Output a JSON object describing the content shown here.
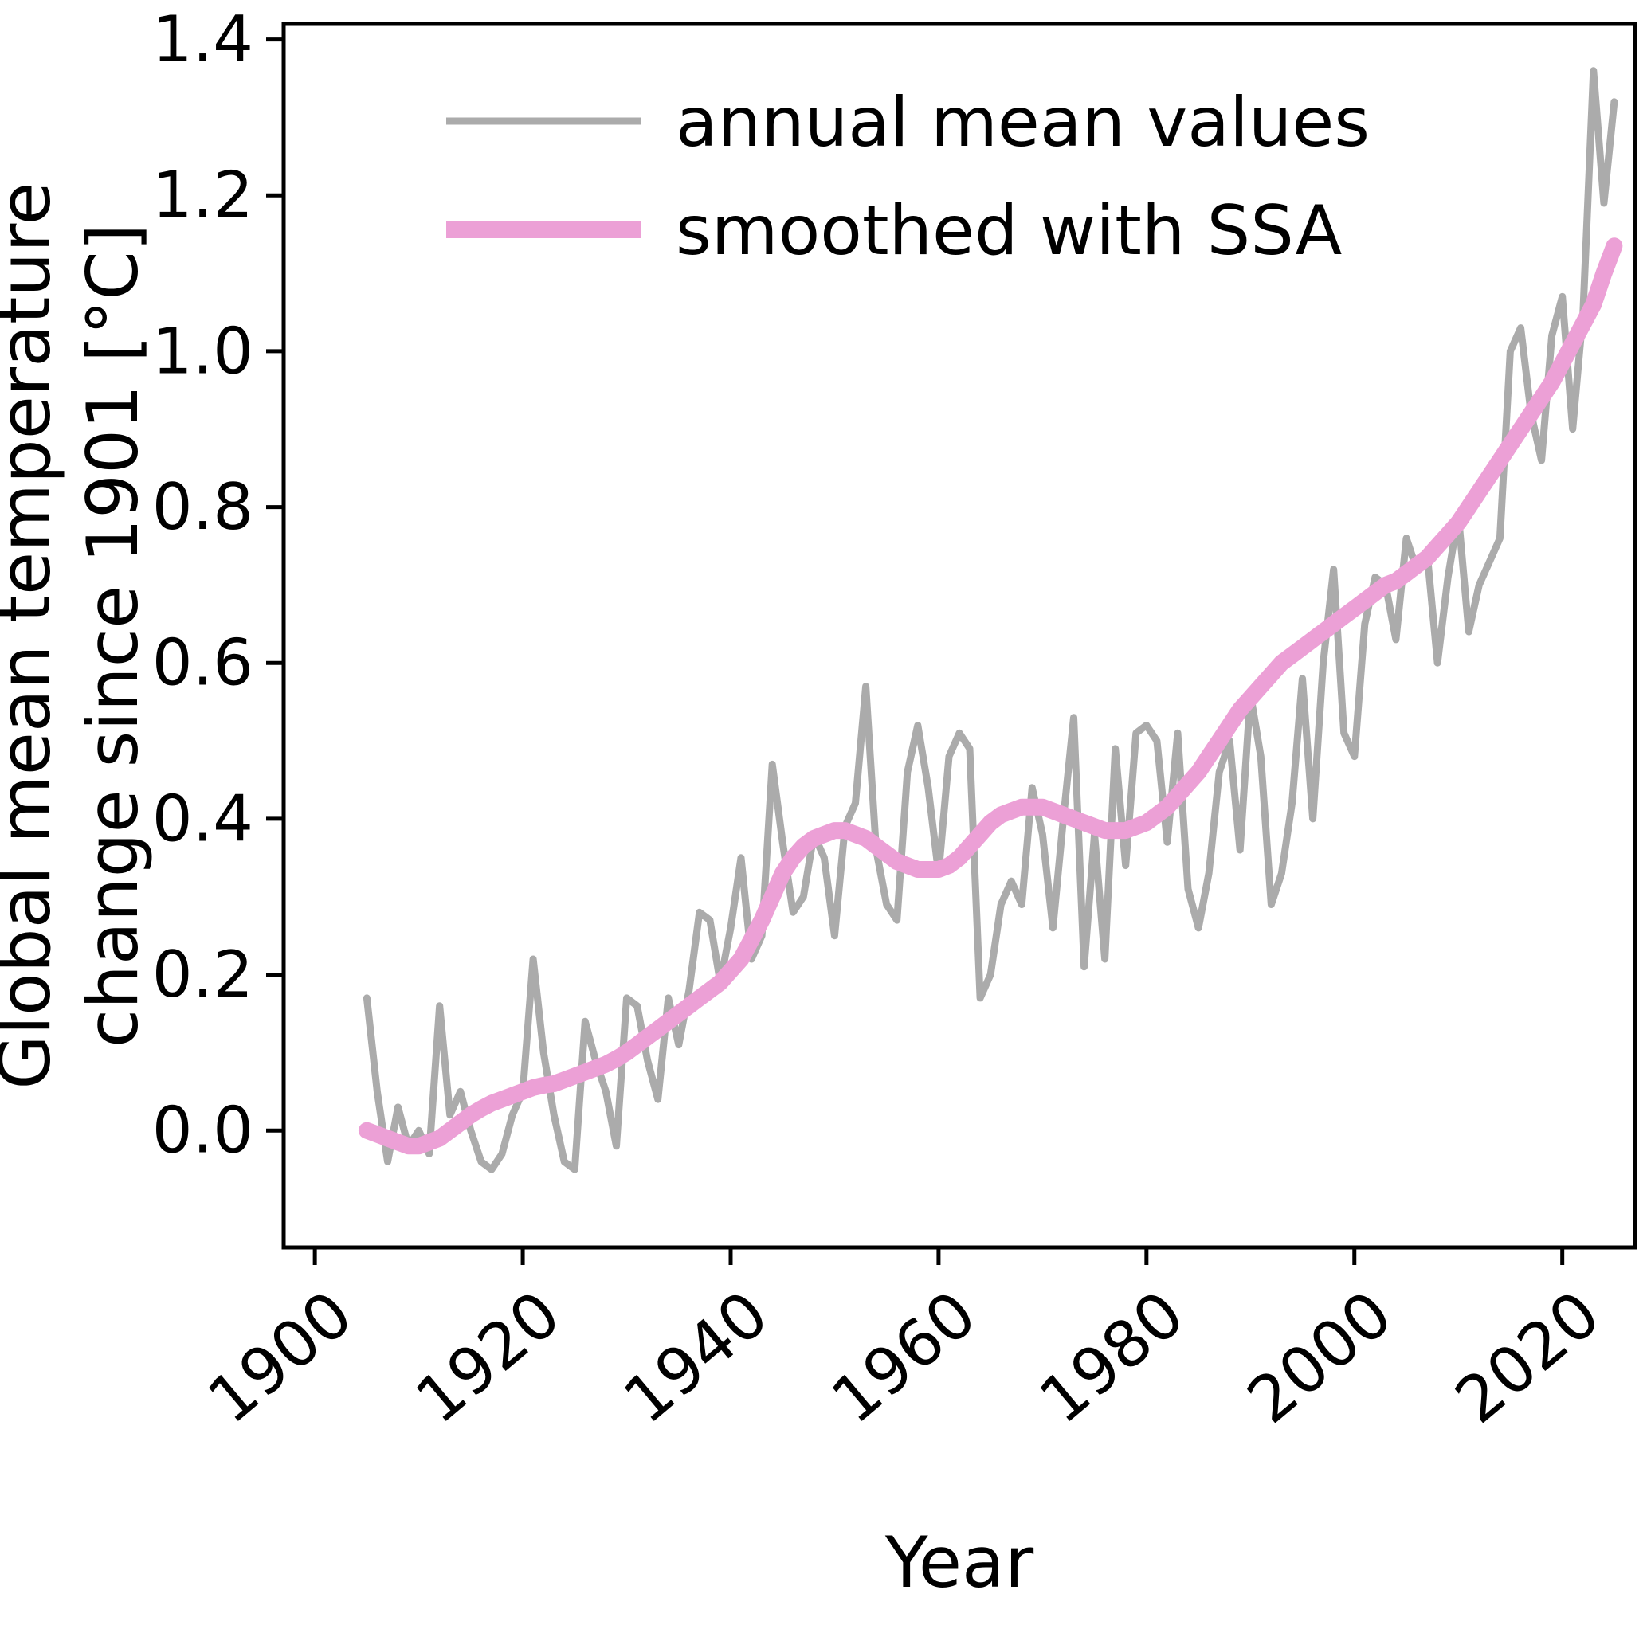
{
  "figure": {
    "background": "#ffffff",
    "spine_color": "#000000",
    "x_ticks": [
      "1900",
      "1920",
      "1940",
      "1960",
      "1980",
      "2000",
      "2020"
    ],
    "y_ticks": [
      "0.0",
      "0.2",
      "0.4",
      "0.6",
      "0.8",
      "1.0",
      "1.2",
      "1.4"
    ],
    "ylabel_lines": [
      "Global mean temperature",
      "change since 1901 [°C]"
    ]
  },
  "chart_data": {
    "type": "line",
    "title": "",
    "xlabel": "Year",
    "ylabel": "Global mean temperature change since 1901 [°C]",
    "xlim": [
      1897,
      2027
    ],
    "ylim": [
      -0.15,
      1.42
    ],
    "grid": false,
    "legend_position": "upper left",
    "x": [
      1905,
      1906,
      1907,
      1908,
      1909,
      1910,
      1911,
      1912,
      1913,
      1914,
      1915,
      1916,
      1917,
      1918,
      1919,
      1920,
      1921,
      1922,
      1923,
      1924,
      1925,
      1926,
      1927,
      1928,
      1929,
      1930,
      1931,
      1932,
      1933,
      1934,
      1935,
      1936,
      1937,
      1938,
      1939,
      1940,
      1941,
      1942,
      1943,
      1944,
      1945,
      1946,
      1947,
      1948,
      1949,
      1950,
      1951,
      1952,
      1953,
      1954,
      1955,
      1956,
      1957,
      1958,
      1959,
      1960,
      1961,
      1962,
      1963,
      1964,
      1965,
      1966,
      1967,
      1968,
      1969,
      1970,
      1971,
      1972,
      1973,
      1974,
      1975,
      1976,
      1977,
      1978,
      1979,
      1980,
      1981,
      1982,
      1983,
      1984,
      1985,
      1986,
      1987,
      1988,
      1989,
      1990,
      1991,
      1992,
      1993,
      1994,
      1995,
      1996,
      1997,
      1998,
      1999,
      2000,
      2001,
      2002,
      2003,
      2004,
      2005,
      2006,
      2007,
      2008,
      2009,
      2010,
      2011,
      2012,
      2013,
      2014,
      2015,
      2016,
      2017,
      2018,
      2019,
      2020,
      2021,
      2022,
      2023,
      2024,
      2025
    ],
    "series": [
      {
        "name": "annual mean values",
        "color": "#ababab",
        "line_width": 9,
        "values": [
          0.17,
          0.05,
          -0.04,
          0.03,
          -0.02,
          0.0,
          -0.03,
          0.16,
          0.02,
          0.05,
          0.0,
          -0.04,
          -0.05,
          -0.03,
          0.02,
          0.05,
          0.22,
          0.1,
          0.02,
          -0.04,
          -0.05,
          0.14,
          0.09,
          0.05,
          -0.02,
          0.17,
          0.16,
          0.09,
          0.04,
          0.17,
          0.11,
          0.18,
          0.28,
          0.27,
          0.19,
          0.26,
          0.35,
          0.22,
          0.25,
          0.47,
          0.37,
          0.28,
          0.3,
          0.38,
          0.35,
          0.25,
          0.39,
          0.42,
          0.57,
          0.36,
          0.29,
          0.27,
          0.46,
          0.52,
          0.44,
          0.33,
          0.48,
          0.51,
          0.49,
          0.17,
          0.2,
          0.29,
          0.32,
          0.29,
          0.44,
          0.38,
          0.26,
          0.4,
          0.53,
          0.21,
          0.38,
          0.22,
          0.49,
          0.34,
          0.51,
          0.52,
          0.5,
          0.37,
          0.51,
          0.31,
          0.26,
          0.33,
          0.46,
          0.5,
          0.36,
          0.56,
          0.48,
          0.29,
          0.33,
          0.42,
          0.58,
          0.4,
          0.6,
          0.72,
          0.51,
          0.48,
          0.65,
          0.71,
          0.7,
          0.63,
          0.76,
          0.72,
          0.74,
          0.6,
          0.71,
          0.79,
          0.64,
          0.7,
          0.73,
          0.76,
          1.0,
          1.03,
          0.92,
          0.86,
          1.02,
          1.07,
          0.9,
          1.05,
          1.36,
          1.19,
          1.32
        ]
      },
      {
        "name": "smoothed with SSA",
        "color": "#eca0d6",
        "line_width": 21,
        "values": [
          0.0,
          -0.005,
          -0.01,
          -0.015,
          -0.02,
          -0.02,
          -0.015,
          -0.01,
          0.0,
          0.01,
          0.02,
          0.028,
          0.035,
          0.04,
          0.045,
          0.05,
          0.055,
          0.058,
          0.06,
          0.065,
          0.07,
          0.075,
          0.08,
          0.085,
          0.092,
          0.1,
          0.11,
          0.12,
          0.13,
          0.14,
          0.15,
          0.16,
          0.17,
          0.18,
          0.19,
          0.205,
          0.22,
          0.245,
          0.27,
          0.3,
          0.33,
          0.35,
          0.365,
          0.375,
          0.38,
          0.385,
          0.385,
          0.38,
          0.375,
          0.365,
          0.355,
          0.345,
          0.34,
          0.335,
          0.335,
          0.335,
          0.34,
          0.35,
          0.365,
          0.38,
          0.395,
          0.405,
          0.41,
          0.415,
          0.415,
          0.415,
          0.41,
          0.405,
          0.4,
          0.395,
          0.39,
          0.385,
          0.385,
          0.385,
          0.39,
          0.395,
          0.405,
          0.415,
          0.43,
          0.445,
          0.46,
          0.48,
          0.5,
          0.52,
          0.54,
          0.555,
          0.57,
          0.585,
          0.6,
          0.61,
          0.62,
          0.63,
          0.64,
          0.65,
          0.66,
          0.67,
          0.68,
          0.69,
          0.7,
          0.705,
          0.715,
          0.725,
          0.735,
          0.75,
          0.765,
          0.78,
          0.8,
          0.82,
          0.84,
          0.86,
          0.88,
          0.9,
          0.92,
          0.94,
          0.96,
          0.985,
          1.01,
          1.035,
          1.06,
          1.1,
          1.135
        ]
      }
    ]
  }
}
